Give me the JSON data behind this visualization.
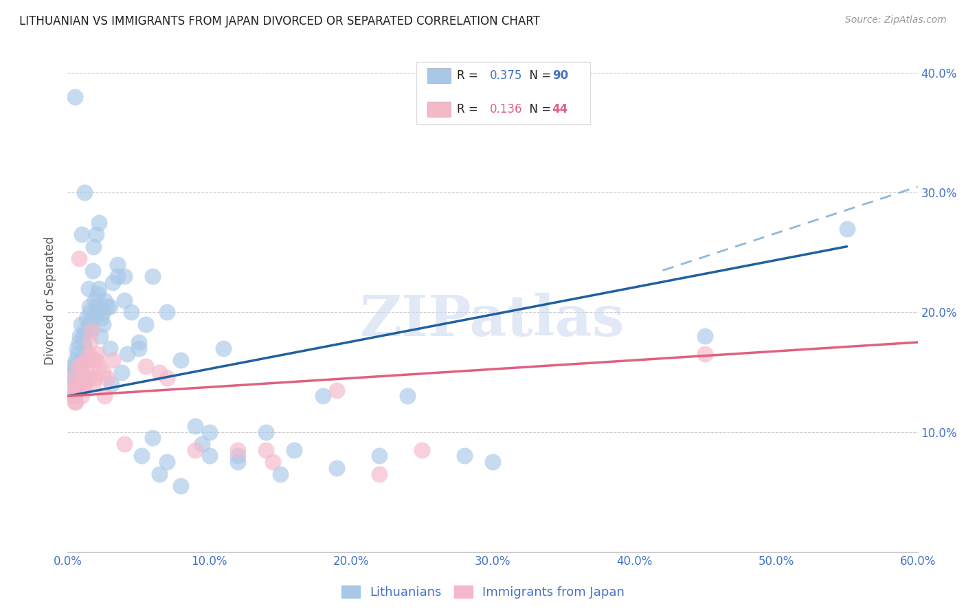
{
  "title": "LITHUANIAN VS IMMIGRANTS FROM JAPAN DIVORCED OR SEPARATED CORRELATION CHART",
  "source": "Source: ZipAtlas.com",
  "ylabel": "Divorced or Separated",
  "legend1_label": "Lithuanians",
  "legend2_label": "Immigrants from Japan",
  "R1": "0.375",
  "N1": "90",
  "R2": "0.136",
  "N2": "44",
  "blue_color": "#a8c8e8",
  "pink_color": "#f4b8c8",
  "blue_line_color": "#2060a0",
  "pink_line_color": "#e06080",
  "blue_dash_color": "#90b8d8",
  "axis_color": "#4472C4",
  "watermark": "ZIPatlas",
  "blue_scatter_x": [
    0.4,
    0.5,
    0.6,
    0.8,
    1.0,
    1.2,
    1.5,
    1.8,
    2.0,
    2.2,
    2.5,
    3.0,
    3.5,
    4.0,
    5.0,
    6.0,
    7.0,
    8.0,
    10.0,
    12.0,
    15.0,
    18.0,
    22.0,
    28.0,
    0.3,
    0.4,
    0.5,
    0.6,
    0.7,
    0.8,
    0.9,
    1.0,
    1.1,
    1.2,
    1.3,
    1.4,
    1.5,
    1.6,
    1.7,
    1.8,
    1.9,
    2.0,
    2.1,
    2.2,
    2.3,
    2.5,
    2.6,
    2.8,
    3.0,
    3.2,
    3.5,
    4.0,
    4.5,
    5.0,
    5.5,
    6.0,
    7.0,
    8.0,
    9.0,
    10.0,
    11.0,
    12.0,
    14.0,
    16.0,
    19.0,
    24.0,
    30.0,
    45.0,
    55.0,
    0.35,
    0.45,
    0.55,
    0.65,
    0.75,
    0.85,
    0.95,
    1.05,
    1.15,
    1.25,
    1.35,
    1.55,
    1.75,
    2.05,
    2.35,
    3.1,
    3.8,
    4.2,
    5.2,
    6.5,
    9.5
  ],
  "blue_scatter_y": [
    14.0,
    38.0,
    14.5,
    15.0,
    26.5,
    30.0,
    22.0,
    25.5,
    26.5,
    27.5,
    20.0,
    20.5,
    24.0,
    23.0,
    17.5,
    9.5,
    7.5,
    5.5,
    8.0,
    7.5,
    6.5,
    13.0,
    8.0,
    8.0,
    14.5,
    15.0,
    15.5,
    14.0,
    16.5,
    17.5,
    16.0,
    15.0,
    18.0,
    17.0,
    14.5,
    16.0,
    19.0,
    20.0,
    18.5,
    19.5,
    21.0,
    20.5,
    21.5,
    22.0,
    18.0,
    19.0,
    21.0,
    20.5,
    17.0,
    22.5,
    23.0,
    21.0,
    20.0,
    17.0,
    19.0,
    23.0,
    20.0,
    16.0,
    10.5,
    10.0,
    17.0,
    8.0,
    10.0,
    8.5,
    7.0,
    13.0,
    7.5,
    18.0,
    27.0,
    15.5,
    13.0,
    16.0,
    17.0,
    15.0,
    18.0,
    19.0,
    16.0,
    17.5,
    18.5,
    19.5,
    20.5,
    23.5,
    20.0,
    19.5,
    14.0,
    15.0,
    16.5,
    8.0,
    6.5,
    9.0
  ],
  "pink_scatter_x": [
    0.3,
    0.4,
    0.5,
    0.6,
    0.7,
    0.8,
    0.9,
    1.0,
    1.1,
    1.2,
    1.3,
    1.4,
    1.5,
    1.6,
    1.7,
    1.8,
    1.9,
    2.0,
    2.2,
    2.5,
    2.8,
    3.2,
    4.0,
    5.5,
    7.0,
    12.0,
    14.0,
    19.0,
    25.0,
    45.0,
    0.35,
    0.55,
    0.75,
    0.95,
    1.15,
    1.35,
    1.55,
    1.75,
    2.1,
    2.6,
    6.5,
    9.0,
    14.5,
    22.0
  ],
  "pink_scatter_y": [
    13.0,
    14.5,
    12.5,
    13.5,
    14.0,
    24.5,
    15.5,
    13.0,
    14.5,
    14.0,
    16.0,
    15.0,
    16.5,
    17.5,
    18.5,
    14.0,
    14.5,
    16.0,
    15.5,
    15.0,
    14.5,
    16.0,
    9.0,
    15.5,
    14.5,
    8.5,
    8.5,
    13.5,
    8.5,
    16.5,
    13.5,
    12.5,
    15.5,
    14.0,
    14.0,
    14.5,
    14.5,
    16.0,
    16.5,
    13.0,
    15.0,
    8.5,
    7.5,
    6.5
  ],
  "xlim": [
    0.0,
    60.0
  ],
  "ylim": [
    0.0,
    42.0
  ],
  "blue_trend": [
    0.0,
    13.0,
    55.0,
    25.5
  ],
  "blue_dash": [
    42.0,
    23.5,
    60.0,
    30.5
  ],
  "pink_trend": [
    0.0,
    13.0,
    60.0,
    17.5
  ],
  "xticks": [
    0,
    10,
    20,
    30,
    40,
    50,
    60
  ],
  "xtick_labels": [
    "0.0%",
    "10.0%",
    "20.0%",
    "30.0%",
    "40.0%",
    "50.0%",
    "60.0%"
  ],
  "yticks": [
    10,
    20,
    30,
    40
  ],
  "ytick_labels": [
    "10.0%",
    "20.0%",
    "30.0%",
    "40.0%"
  ]
}
